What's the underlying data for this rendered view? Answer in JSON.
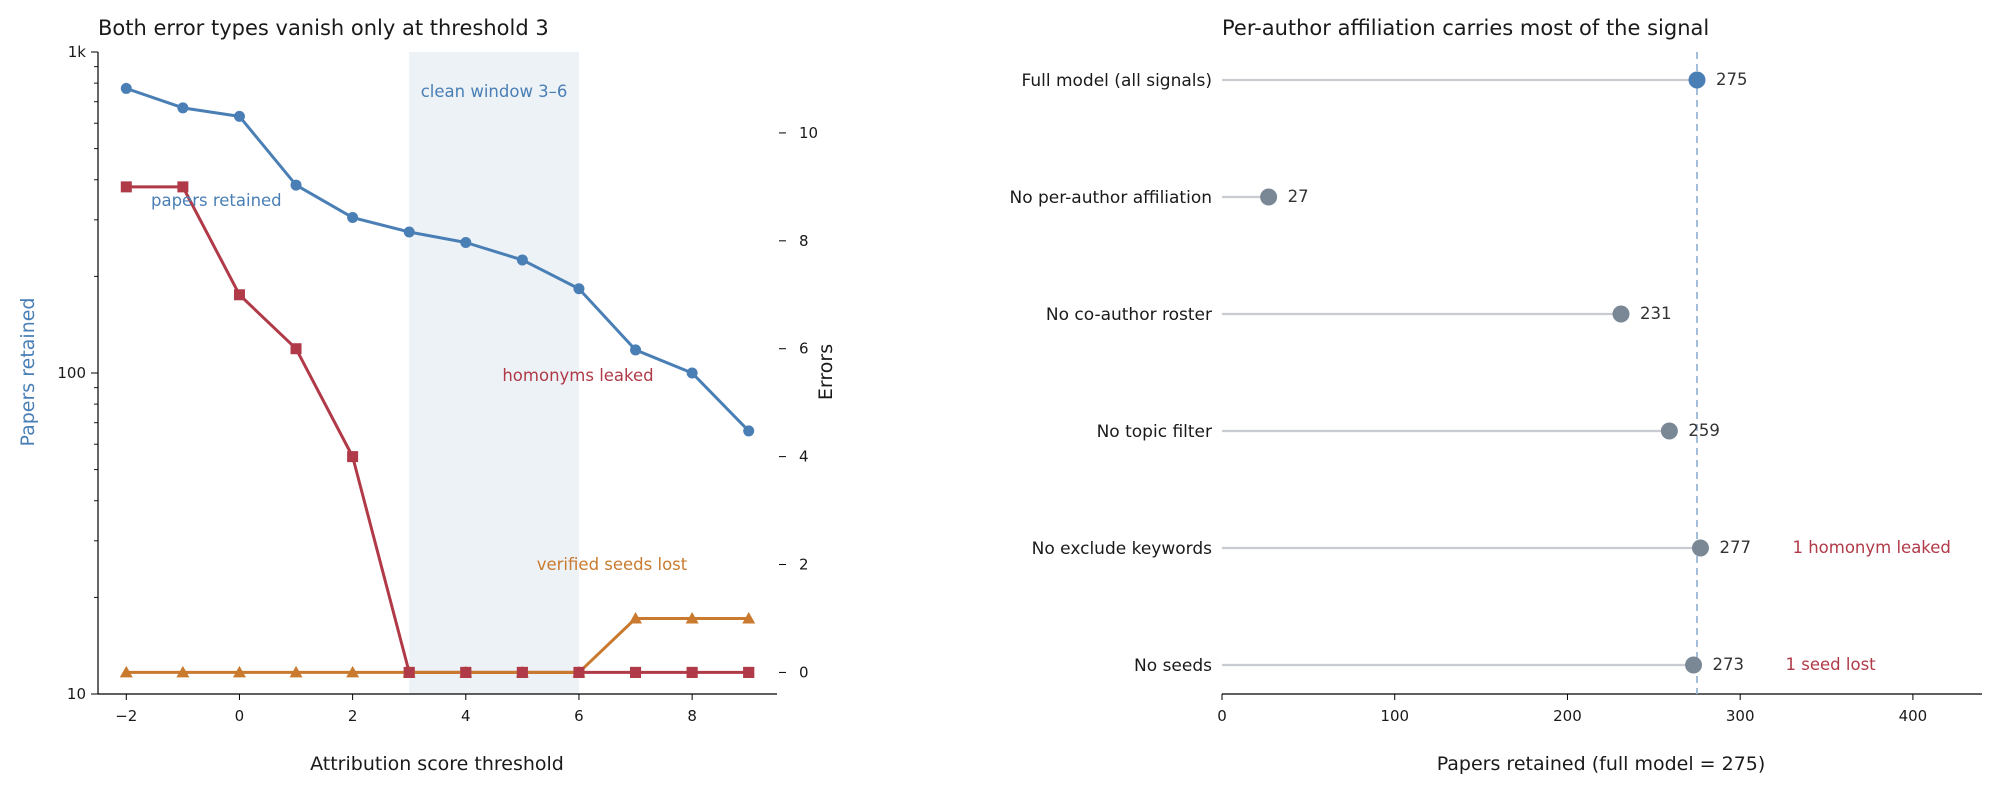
{
  "chart_data": [
    {
      "type": "line",
      "title": "Both error types vanish only at threshold 3",
      "xlabel": "Attribution score threshold",
      "ylabel": "Papers retained",
      "y2label": "Errors",
      "x": [
        -2,
        -1,
        0,
        1,
        2,
        3,
        4,
        5,
        6,
        7,
        8,
        9
      ],
      "xlim": [
        -2.5,
        9.5
      ],
      "x_ticks": [
        -2,
        0,
        2,
        4,
        6,
        8
      ],
      "ylim": [
        10,
        1000
      ],
      "y_scale": "log",
      "y_ticks": [
        {
          "value": 10,
          "label": "10"
        },
        {
          "value": 100,
          "label": "100"
        },
        {
          "value": 1000,
          "label": "1k"
        }
      ],
      "y2lim": [
        -0.4,
        11.5
      ],
      "y2_ticks": [
        0,
        2,
        4,
        6,
        8,
        10
      ],
      "shaded_region": {
        "x": [
          3,
          6
        ],
        "label": "clean window 3–6",
        "color": "#4a7fb5"
      },
      "series": [
        {
          "name": "papers retained",
          "axis": "left",
          "marker": "circle",
          "color": "#4a7fb5",
          "values": [
            770,
            670,
            630,
            385,
            305,
            275,
            255,
            225,
            183,
            118,
            100,
            66
          ]
        },
        {
          "name": "homonyms leaked",
          "axis": "right",
          "marker": "square",
          "color": "#b03a48",
          "values": [
            9,
            9,
            7,
            6,
            4,
            0,
            0,
            0,
            0,
            0,
            0,
            0
          ]
        },
        {
          "name": "verified seeds lost",
          "axis": "right",
          "marker": "triangle",
          "color": "#c97a2e",
          "values": [
            0,
            0,
            0,
            0,
            0,
            0,
            0,
            0,
            0,
            1,
            1,
            1
          ]
        }
      ],
      "grid": false
    },
    {
      "type": "lollipop",
      "title": "Per-author affiliation carries most of the signal",
      "xlabel": "Papers retained (full model = 275)",
      "xlim": [
        0,
        440
      ],
      "x_ticks": [
        0,
        100,
        200,
        300,
        400
      ],
      "reference_line": 275,
      "categories": [
        "Full model (all signals)",
        "No per-author affiliation",
        "No co-author roster",
        "No topic filter",
        "No exclude keywords",
        "No seeds"
      ],
      "values": [
        275,
        27,
        231,
        259,
        277,
        273
      ],
      "annotations": [
        "",
        "",
        "",
        "",
        "1 homonym leaked",
        "1 seed lost"
      ],
      "colors": {
        "highlight": "#4a7fb5",
        "default": "#7a8795",
        "stem": "#c8ccd0",
        "annotation": "#b03a48"
      },
      "grid": false
    }
  ]
}
